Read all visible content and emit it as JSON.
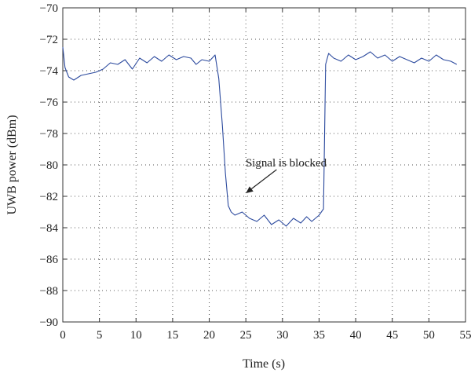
{
  "chart_data": {
    "type": "line",
    "title": "",
    "xlabel": "Time (s)",
    "ylabel": "UWB power (dBm)",
    "xlim": [
      0,
      55
    ],
    "ylim": [
      -90,
      -70
    ],
    "xticks": [
      0,
      5,
      10,
      15,
      20,
      25,
      30,
      35,
      40,
      45,
      50,
      55
    ],
    "yticks": [
      -90,
      -88,
      -86,
      -84,
      -82,
      -80,
      -78,
      -76,
      -74,
      -72,
      -70
    ],
    "xtick_labels": [
      "0",
      "5",
      "10",
      "15",
      "20",
      "25",
      "30",
      "35",
      "40",
      "45",
      "50",
      "55"
    ],
    "ytick_labels": [
      "−90",
      "−88",
      "−86",
      "−84",
      "−82",
      "−80",
      "−78",
      "−76",
      "−74",
      "−72",
      "−70"
    ],
    "grid": true,
    "line_color": "#2c4a9e",
    "series": [
      {
        "name": "",
        "x": [
          0,
          0.3,
          0.8,
          1.5,
          2.5,
          3.5,
          4.5,
          5.5,
          6.5,
          7.5,
          8.5,
          9.5,
          10.5,
          11.5,
          12.5,
          13.5,
          14.5,
          15.5,
          16.5,
          17.5,
          18.2,
          19,
          20,
          20.8,
          21.3,
          21.8,
          22.2,
          22.6,
          23,
          23.5,
          24.5,
          25.5,
          26.5,
          27.5,
          28.5,
          29.5,
          30.5,
          31.5,
          32.5,
          33.3,
          34,
          35,
          35.6,
          35.9,
          36.3,
          37,
          38,
          39,
          40,
          41,
          42,
          43,
          44,
          45,
          46,
          47,
          48,
          49,
          50,
          51,
          52,
          53,
          53.8
        ],
        "y": [
          -72.5,
          -73.8,
          -74.4,
          -74.6,
          -74.3,
          -74.2,
          -74.1,
          -73.9,
          -73.5,
          -73.6,
          -73.3,
          -73.9,
          -73.2,
          -73.5,
          -73.1,
          -73.4,
          -73.0,
          -73.3,
          -73.1,
          -73.2,
          -73.6,
          -73.3,
          -73.4,
          -73.0,
          -74.5,
          -77.5,
          -80.5,
          -82.6,
          -83.0,
          -83.2,
          -83.0,
          -83.4,
          -83.6,
          -83.2,
          -83.8,
          -83.5,
          -83.9,
          -83.4,
          -83.7,
          -83.3,
          -83.6,
          -83.2,
          -82.8,
          -73.6,
          -72.9,
          -73.2,
          -73.4,
          -73.0,
          -73.3,
          -73.1,
          -72.8,
          -73.2,
          -73.0,
          -73.4,
          -73.1,
          -73.3,
          -73.5,
          -73.2,
          -73.4,
          -73.0,
          -73.3,
          -73.4,
          -73.6
        ]
      }
    ],
    "annotation": {
      "text": "Signal is blocked",
      "text_at": [
        30.5,
        -80.1
      ],
      "arrow_from": [
        29.2,
        -80.3
      ],
      "arrow_to": [
        25.0,
        -81.8
      ]
    }
  }
}
